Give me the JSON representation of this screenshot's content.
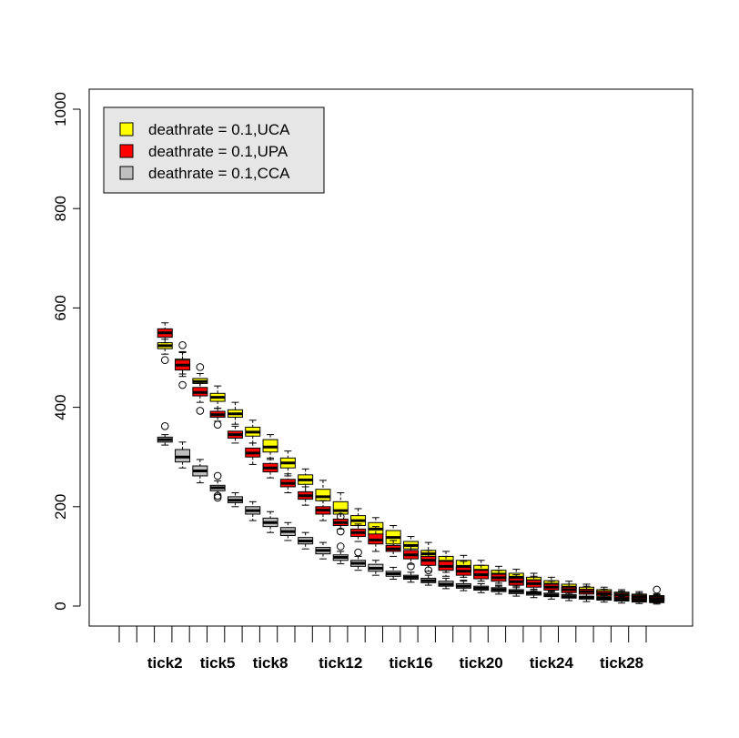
{
  "chart_data": {
    "type": "boxplot",
    "ylim": [
      0,
      1000
    ],
    "yticks": [
      0,
      200,
      400,
      600,
      800,
      1000
    ],
    "grid": false,
    "legend_position": "top-left",
    "legend": [
      {
        "label": "deathrate = 0.1,UCA",
        "color": "#FFFF00"
      },
      {
        "label": "deathrate = 0.1,UPA",
        "color": "#FF0000"
      },
      {
        "label": "deathrate = 0.1,CCA",
        "color": "#BEBEBE"
      }
    ],
    "xtick_labels": [
      "tick2",
      "tick5",
      "tick8",
      "tick12",
      "tick16",
      "tick20",
      "tick24",
      "tick28"
    ],
    "series": [
      {
        "name": "deathrate = 0.1,UCA",
        "color": "#FFFF00",
        "boxes": [
          {
            "x": "tick2",
            "q1": 518,
            "median": 524,
            "q3": 530,
            "lo": 507,
            "hi": 537,
            "outliers": [
              495
            ]
          },
          {
            "x": "tick3",
            "q1": 482,
            "median": 490,
            "q3": 497,
            "lo": 467,
            "hi": 512,
            "outliers": [
              525,
              445
            ]
          },
          {
            "x": "tick4",
            "q1": 448,
            "median": 452,
            "q3": 458,
            "lo": 438,
            "hi": 468,
            "outliers": [
              481,
              393
            ]
          },
          {
            "x": "tick5",
            "q1": 412,
            "median": 420,
            "q3": 428,
            "lo": 398,
            "hi": 443,
            "outliers": []
          },
          {
            "x": "tick6",
            "q1": 380,
            "median": 387,
            "q3": 395,
            "lo": 366,
            "hi": 410,
            "outliers": []
          },
          {
            "x": "tick7",
            "q1": 342,
            "median": 350,
            "q3": 360,
            "lo": 328,
            "hi": 374,
            "outliers": []
          },
          {
            "x": "tick8",
            "q1": 310,
            "median": 320,
            "q3": 335,
            "lo": 295,
            "hi": 345,
            "outliers": []
          },
          {
            "x": "tick9",
            "q1": 278,
            "median": 288,
            "q3": 298,
            "lo": 262,
            "hi": 312,
            "outliers": []
          },
          {
            "x": "tick10",
            "q1": 245,
            "median": 254,
            "q3": 264,
            "lo": 230,
            "hi": 276,
            "outliers": []
          },
          {
            "x": "tick11",
            "q1": 212,
            "median": 220,
            "q3": 235,
            "lo": 198,
            "hi": 253,
            "outliers": []
          },
          {
            "x": "tick12",
            "q1": 185,
            "median": 192,
            "q3": 210,
            "lo": 170,
            "hi": 228,
            "outliers": [
              180
            ]
          },
          {
            "x": "tick13",
            "q1": 162,
            "median": 172,
            "q3": 182,
            "lo": 148,
            "hi": 196,
            "outliers": []
          },
          {
            "x": "tick14",
            "q1": 143,
            "median": 155,
            "q3": 168,
            "lo": 128,
            "hi": 178,
            "outliers": []
          },
          {
            "x": "tick15",
            "q1": 125,
            "median": 138,
            "q3": 152,
            "lo": 112,
            "hi": 162,
            "outliers": []
          },
          {
            "x": "tick16",
            "q1": 115,
            "median": 122,
            "q3": 130,
            "lo": 100,
            "hi": 140,
            "outliers": []
          },
          {
            "x": "tick17",
            "q1": 95,
            "median": 105,
            "q3": 112,
            "lo": 82,
            "hi": 128,
            "outliers": []
          },
          {
            "x": "tick18",
            "q1": 80,
            "median": 90,
            "q3": 100,
            "lo": 68,
            "hi": 110,
            "outliers": []
          },
          {
            "x": "tick19",
            "q1": 70,
            "median": 80,
            "q3": 92,
            "lo": 58,
            "hi": 102,
            "outliers": []
          },
          {
            "x": "tick20",
            "q1": 62,
            "median": 72,
            "q3": 82,
            "lo": 50,
            "hi": 92,
            "outliers": []
          },
          {
            "x": "tick21",
            "q1": 56,
            "median": 64,
            "q3": 72,
            "lo": 46,
            "hi": 80,
            "outliers": []
          },
          {
            "x": "tick22",
            "q1": 50,
            "median": 58,
            "q3": 66,
            "lo": 40,
            "hi": 74,
            "outliers": []
          },
          {
            "x": "tick23",
            "q1": 43,
            "median": 51,
            "q3": 58,
            "lo": 34,
            "hi": 66,
            "outliers": []
          },
          {
            "x": "tick24",
            "q1": 37,
            "median": 44,
            "q3": 51,
            "lo": 28,
            "hi": 58,
            "outliers": []
          },
          {
            "x": "tick25",
            "q1": 31,
            "median": 38,
            "q3": 44,
            "lo": 24,
            "hi": 50,
            "outliers": []
          },
          {
            "x": "tick26",
            "q1": 27,
            "median": 32,
            "q3": 38,
            "lo": 19,
            "hi": 44,
            "outliers": []
          },
          {
            "x": "tick27",
            "q1": 22,
            "median": 27,
            "q3": 33,
            "lo": 15,
            "hi": 38,
            "outliers": []
          },
          {
            "x": "tick28",
            "q1": 19,
            "median": 24,
            "q3": 28,
            "lo": 12,
            "hi": 33,
            "outliers": []
          },
          {
            "x": "tick29",
            "q1": 16,
            "median": 20,
            "q3": 24,
            "lo": 9,
            "hi": 29,
            "outliers": []
          },
          {
            "x": "tick30",
            "q1": 13,
            "median": 17,
            "q3": 21,
            "lo": 7,
            "hi": 25,
            "outliers": [
              33
            ]
          }
        ]
      },
      {
        "name": "deathrate = 0.1,UPA",
        "color": "#FF0000",
        "boxes": [
          {
            "x": "tick2",
            "q1": 541,
            "median": 550,
            "q3": 558,
            "lo": 530,
            "hi": 570,
            "outliers": []
          },
          {
            "x": "tick3",
            "q1": 475,
            "median": 485,
            "q3": 495,
            "lo": 462,
            "hi": 510,
            "outliers": []
          },
          {
            "x": "tick4",
            "q1": 423,
            "median": 430,
            "q3": 440,
            "lo": 410,
            "hi": 448,
            "outliers": []
          },
          {
            "x": "tick5",
            "q1": 380,
            "median": 385,
            "q3": 392,
            "lo": 372,
            "hi": 398,
            "outliers": [
              365
            ]
          },
          {
            "x": "tick6",
            "q1": 338,
            "median": 345,
            "q3": 352,
            "lo": 328,
            "hi": 362,
            "outliers": []
          },
          {
            "x": "tick7",
            "q1": 300,
            "median": 308,
            "q3": 318,
            "lo": 285,
            "hi": 328,
            "outliers": []
          },
          {
            "x": "tick8",
            "q1": 270,
            "median": 278,
            "q3": 287,
            "lo": 258,
            "hi": 298,
            "outliers": []
          },
          {
            "x": "tick9",
            "q1": 240,
            "median": 247,
            "q3": 255,
            "lo": 228,
            "hi": 266,
            "outliers": []
          },
          {
            "x": "tick10",
            "q1": 215,
            "median": 222,
            "q3": 230,
            "lo": 203,
            "hi": 240,
            "outliers": []
          },
          {
            "x": "tick11",
            "q1": 185,
            "median": 193,
            "q3": 200,
            "lo": 172,
            "hi": 212,
            "outliers": []
          },
          {
            "x": "tick12",
            "q1": 162,
            "median": 168,
            "q3": 175,
            "lo": 155,
            "hi": 185,
            "outliers": [
              150,
              120
            ]
          },
          {
            "x": "tick13",
            "q1": 140,
            "median": 148,
            "q3": 155,
            "lo": 130,
            "hi": 165,
            "outliers": [
              108
            ]
          },
          {
            "x": "tick14",
            "q1": 125,
            "median": 133,
            "q3": 145,
            "lo": 110,
            "hi": 160,
            "outliers": []
          },
          {
            "x": "tick15",
            "q1": 110,
            "median": 115,
            "q3": 122,
            "lo": 100,
            "hi": 132,
            "outliers": []
          },
          {
            "x": "tick16",
            "q1": 95,
            "median": 103,
            "q3": 112,
            "lo": 84,
            "hi": 120,
            "outliers": [
              80
            ]
          },
          {
            "x": "tick17",
            "q1": 82,
            "median": 92,
            "q3": 100,
            "lo": 70,
            "hi": 112,
            "outliers": [
              72
            ]
          },
          {
            "x": "tick18",
            "q1": 72,
            "median": 80,
            "q3": 90,
            "lo": 60,
            "hi": 100,
            "outliers": []
          },
          {
            "x": "tick19",
            "q1": 62,
            "median": 70,
            "q3": 78,
            "lo": 52,
            "hi": 90,
            "outliers": []
          },
          {
            "x": "tick20",
            "q1": 55,
            "median": 63,
            "q3": 72,
            "lo": 45,
            "hi": 82,
            "outliers": []
          },
          {
            "x": "tick21",
            "q1": 50,
            "median": 57,
            "q3": 64,
            "lo": 40,
            "hi": 72,
            "outliers": []
          },
          {
            "x": "tick22",
            "q1": 42,
            "median": 49,
            "q3": 56,
            "lo": 33,
            "hi": 63,
            "outliers": []
          },
          {
            "x": "tick23",
            "q1": 38,
            "median": 45,
            "q3": 52,
            "lo": 30,
            "hi": 60,
            "outliers": []
          },
          {
            "x": "tick24",
            "q1": 32,
            "median": 38,
            "q3": 44,
            "lo": 24,
            "hi": 50,
            "outliers": []
          },
          {
            "x": "tick25",
            "q1": 27,
            "median": 33,
            "q3": 38,
            "lo": 20,
            "hi": 44,
            "outliers": []
          },
          {
            "x": "tick26",
            "q1": 24,
            "median": 29,
            "q3": 34,
            "lo": 16,
            "hi": 40,
            "outliers": []
          },
          {
            "x": "tick27",
            "q1": 20,
            "median": 25,
            "q3": 30,
            "lo": 13,
            "hi": 34,
            "outliers": []
          },
          {
            "x": "tick28",
            "q1": 17,
            "median": 22,
            "q3": 26,
            "lo": 10,
            "hi": 30,
            "outliers": []
          },
          {
            "x": "tick29",
            "q1": 14,
            "median": 18,
            "q3": 22,
            "lo": 8,
            "hi": 26,
            "outliers": []
          },
          {
            "x": "tick30",
            "q1": 12,
            "median": 15,
            "q3": 19,
            "lo": 6,
            "hi": 23,
            "outliers": []
          }
        ]
      },
      {
        "name": "deathrate = 0.1,CCA",
        "color": "#BEBEBE",
        "boxes": [
          {
            "x": "tick2",
            "q1": 330,
            "median": 335,
            "q3": 340,
            "lo": 324,
            "hi": 345,
            "outliers": [
              362
            ]
          },
          {
            "x": "tick3",
            "q1": 290,
            "median": 300,
            "q3": 315,
            "lo": 278,
            "hi": 330,
            "outliers": []
          },
          {
            "x": "tick4",
            "q1": 262,
            "median": 272,
            "q3": 282,
            "lo": 248,
            "hi": 295,
            "outliers": []
          },
          {
            "x": "tick5",
            "q1": 232,
            "median": 238,
            "q3": 243,
            "lo": 225,
            "hi": 252,
            "outliers": [
              262,
              222,
              218
            ]
          },
          {
            "x": "tick6",
            "q1": 208,
            "median": 213,
            "q3": 220,
            "lo": 200,
            "hi": 228,
            "outliers": []
          },
          {
            "x": "tick7",
            "q1": 185,
            "median": 192,
            "q3": 200,
            "lo": 172,
            "hi": 210,
            "outliers": []
          },
          {
            "x": "tick8",
            "q1": 160,
            "median": 168,
            "q3": 177,
            "lo": 148,
            "hi": 190,
            "outliers": []
          },
          {
            "x": "tick9",
            "q1": 142,
            "median": 150,
            "q3": 158,
            "lo": 132,
            "hi": 168,
            "outliers": []
          },
          {
            "x": "tick10",
            "q1": 125,
            "median": 131,
            "q3": 138,
            "lo": 115,
            "hi": 148,
            "outliers": []
          },
          {
            "x": "tick11",
            "q1": 105,
            "median": 112,
            "q3": 118,
            "lo": 95,
            "hi": 128,
            "outliers": []
          },
          {
            "x": "tick12",
            "q1": 92,
            "median": 98,
            "q3": 103,
            "lo": 85,
            "hi": 110,
            "outliers": []
          },
          {
            "x": "tick13",
            "q1": 80,
            "median": 86,
            "q3": 92,
            "lo": 72,
            "hi": 100,
            "outliers": []
          },
          {
            "x": "tick14",
            "q1": 70,
            "median": 76,
            "q3": 84,
            "lo": 62,
            "hi": 92,
            "outliers": []
          },
          {
            "x": "tick15",
            "q1": 60,
            "median": 65,
            "q3": 70,
            "lo": 54,
            "hi": 78,
            "outliers": []
          },
          {
            "x": "tick16",
            "q1": 54,
            "median": 58,
            "q3": 62,
            "lo": 48,
            "hi": 68,
            "outliers": []
          },
          {
            "x": "tick17",
            "q1": 47,
            "median": 51,
            "q3": 56,
            "lo": 42,
            "hi": 62,
            "outliers": []
          },
          {
            "x": "tick18",
            "q1": 40,
            "median": 44,
            "q3": 50,
            "lo": 35,
            "hi": 56,
            "outliers": []
          },
          {
            "x": "tick19",
            "q1": 36,
            "median": 40,
            "q3": 45,
            "lo": 31,
            "hi": 50,
            "outliers": []
          },
          {
            "x": "tick20",
            "q1": 32,
            "median": 36,
            "q3": 40,
            "lo": 27,
            "hi": 45,
            "outliers": []
          },
          {
            "x": "tick21",
            "q1": 29,
            "median": 33,
            "q3": 37,
            "lo": 24,
            "hi": 42,
            "outliers": []
          },
          {
            "x": "tick22",
            "q1": 25,
            "median": 29,
            "q3": 33,
            "lo": 20,
            "hi": 37,
            "outliers": []
          },
          {
            "x": "tick23",
            "q1": 22,
            "median": 26,
            "q3": 29,
            "lo": 17,
            "hi": 33,
            "outliers": []
          },
          {
            "x": "tick24",
            "q1": 19,
            "median": 22,
            "q3": 26,
            "lo": 14,
            "hi": 30,
            "outliers": []
          },
          {
            "x": "tick25",
            "q1": 16,
            "median": 19,
            "q3": 23,
            "lo": 11,
            "hi": 27,
            "outliers": []
          },
          {
            "x": "tick26",
            "q1": 14,
            "median": 17,
            "q3": 20,
            "lo": 9,
            "hi": 24,
            "outliers": []
          },
          {
            "x": "tick27",
            "q1": 12,
            "median": 15,
            "q3": 18,
            "lo": 8,
            "hi": 21,
            "outliers": []
          },
          {
            "x": "tick28",
            "q1": 10,
            "median": 13,
            "q3": 16,
            "lo": 6,
            "hi": 19,
            "outliers": []
          },
          {
            "x": "tick29",
            "q1": 8,
            "median": 11,
            "q3": 14,
            "lo": 5,
            "hi": 17,
            "outliers": []
          },
          {
            "x": "tick30",
            "q1": 7,
            "median": 9,
            "q3": 12,
            "lo": 4,
            "hi": 15,
            "outliers": []
          }
        ]
      }
    ]
  }
}
